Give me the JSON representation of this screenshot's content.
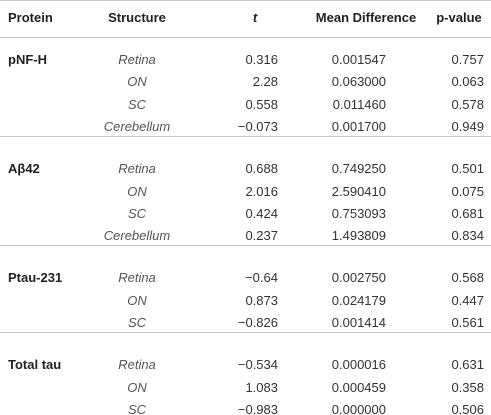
{
  "table": {
    "header": [
      "Protein",
      "Structure",
      "t",
      "Mean Difference",
      "p-value"
    ],
    "groups": [
      {
        "protein": "pNF-H",
        "rows": [
          [
            "Retina",
            "0.316",
            "0.001547",
            "0.757"
          ],
          [
            "ON",
            "2.28",
            "0.063000",
            "0.063"
          ],
          [
            "SC",
            "0.558",
            "0.011460",
            "0.578"
          ],
          [
            "Cerebellum",
            "−0.073",
            "0.001700",
            "0.949"
          ]
        ]
      },
      {
        "protein": "Aβ42",
        "rows": [
          [
            "Retina",
            "0.688",
            "0.749250",
            "0.501"
          ],
          [
            "ON",
            "2.016",
            "2.590410",
            "0.075"
          ],
          [
            "SC",
            "0.424",
            "0.753093",
            "0.681"
          ],
          [
            "Cerebellum",
            "0.237",
            "1.493809",
            "0.834"
          ]
        ]
      },
      {
        "protein": "Ptau-231",
        "rows": [
          [
            "Retina",
            "−0.64",
            "0.002750",
            "0.568"
          ],
          [
            "ON",
            "0.873",
            "0.024179",
            "0.447"
          ],
          [
            "SC",
            "−0.826",
            "0.001414",
            "0.561"
          ]
        ]
      },
      {
        "protein": "Total tau",
        "rows": [
          [
            "Retina",
            "−0.534",
            "0.000016",
            "0.631"
          ],
          [
            "ON",
            "1.083",
            "0.000459",
            "0.358"
          ],
          [
            "SC",
            "−0.983",
            "0.000000",
            "0.506"
          ]
        ]
      }
    ]
  }
}
